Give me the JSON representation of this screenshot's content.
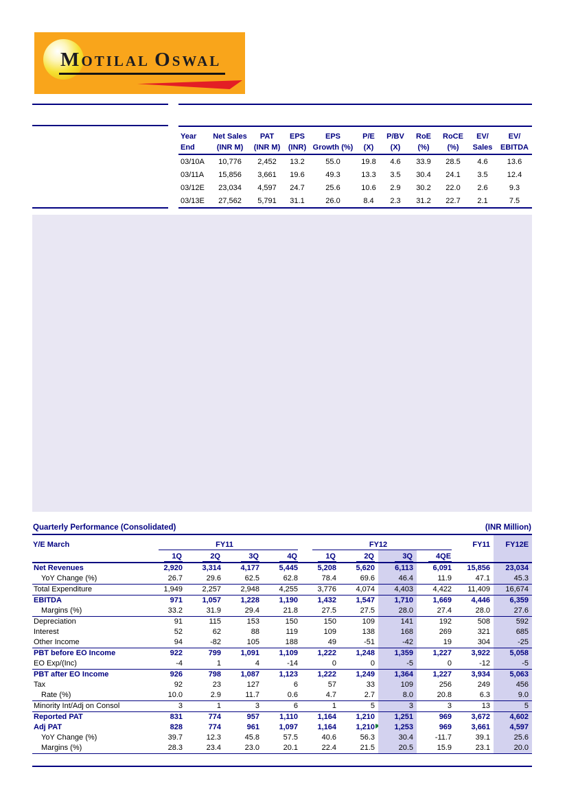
{
  "page": {
    "colors": {
      "accent_navy": "#000080",
      "logo_orange": "#F9A51B",
      "logo_red": "#E31E25",
      "panel_lavender": "#E9E7F3",
      "highlight_lavender": "#D3D2EF",
      "comment_green": "#1E7F3C"
    }
  },
  "logo": {
    "word1_initial": "M",
    "word1_rest": "OTILAL ",
    "word2_initial": "O",
    "word2_rest": "SWAL"
  },
  "summary_table": {
    "columns": [
      {
        "l1": "Year",
        "l2": "End"
      },
      {
        "l1": "Net Sales",
        "l2": "(INR M)"
      },
      {
        "l1": "PAT",
        "l2": "(INR M)"
      },
      {
        "l1": "EPS",
        "l2": "(INR)"
      },
      {
        "l1": "EPS",
        "l2": "Growth (%)"
      },
      {
        "l1": "P/E",
        "l2": "(X)"
      },
      {
        "l1": "P/BV",
        "l2": "(X)"
      },
      {
        "l1": "RoE",
        "l2": "(%)"
      },
      {
        "l1": "RoCE",
        "l2": "(%)"
      },
      {
        "l1": "EV/",
        "l2": "Sales"
      },
      {
        "l1": "EV/",
        "l2": "EBITDA"
      }
    ],
    "rows": [
      [
        "03/10A",
        "10,776",
        "2,452",
        "13.2",
        "55.0",
        "19.8",
        "4.6",
        "33.9",
        "28.5",
        "4.6",
        "13.6"
      ],
      [
        "03/11A",
        "15,856",
        "3,661",
        "19.6",
        "49.3",
        "13.3",
        "3.5",
        "30.4",
        "24.1",
        "3.5",
        "12.4"
      ],
      [
        "03/12E",
        "23,034",
        "4,597",
        "24.7",
        "25.6",
        "10.6",
        "2.9",
        "30.2",
        "22.0",
        "2.6",
        "9.3"
      ],
      [
        "03/13E",
        "27,562",
        "5,791",
        "31.1",
        "26.0",
        "8.4",
        "2.3",
        "31.2",
        "22.7",
        "2.1",
        "7.5"
      ]
    ]
  },
  "quarterly_table": {
    "title": "Quarterly Performance (Consolidated)",
    "unit_label": "(INR Million)",
    "ye_label": "Y/E March",
    "group_fy11": "FY11",
    "group_fy12": "FY12",
    "annual_fy11": "FY11",
    "annual_fy12e": "FY12E",
    "quarters": [
      "1Q",
      "2Q",
      "3Q",
      "4Q",
      "1Q",
      "2Q",
      "3Q",
      "4QE"
    ],
    "rows": [
      {
        "label": "Net Revenues",
        "bold": true,
        "values": [
          "2,920",
          "3,314",
          "4,177",
          "5,445",
          "5,208",
          "5,620",
          "6,113",
          "6,091",
          "15,856",
          "23,034"
        ]
      },
      {
        "label": "YoY Change (%)",
        "indent": true,
        "values": [
          "26.7",
          "29.6",
          "62.5",
          "62.8",
          "78.4",
          "69.6",
          "46.4",
          "11.9",
          "47.1",
          "45.3"
        ]
      },
      {
        "label": "Total Expenditure",
        "top": true,
        "values": [
          "1,949",
          "2,257",
          "2,948",
          "4,255",
          "3,776",
          "4,074",
          "4,403",
          "4,422",
          "11,409",
          "16,674"
        ]
      },
      {
        "label": "EBITDA",
        "bold": true,
        "top": true,
        "values": [
          "971",
          "1,057",
          "1,228",
          "1,190",
          "1,432",
          "1,547",
          "1,710",
          "1,669",
          "4,446",
          "6,359"
        ]
      },
      {
        "label": "Margins (%)",
        "indent": true,
        "values": [
          "33.2",
          "31.9",
          "29.4",
          "21.8",
          "27.5",
          "27.5",
          "28.0",
          "27.4",
          "28.0",
          "27.6"
        ]
      },
      {
        "label": "Depreciation",
        "top": true,
        "values": [
          "91",
          "115",
          "153",
          "150",
          "150",
          "109",
          "141",
          "192",
          "508",
          "592"
        ]
      },
      {
        "label": "Interest",
        "values": [
          "52",
          "62",
          "88",
          "119",
          "109",
          "138",
          "168",
          "269",
          "321",
          "685"
        ]
      },
      {
        "label": "Other Income",
        "values": [
          "94",
          "-82",
          "105",
          "188",
          "49",
          "-51",
          "-42",
          "19",
          "304",
          "-25"
        ]
      },
      {
        "label": "PBT before EO Income",
        "bold": true,
        "top": true,
        "values": [
          "922",
          "799",
          "1,091",
          "1,109",
          "1,222",
          "1,248",
          "1,359",
          "1,227",
          "3,922",
          "5,058"
        ]
      },
      {
        "label": "EO Exp/(Inc)",
        "values": [
          "-4",
          "1",
          "4",
          "-14",
          "0",
          "0",
          "-5",
          "0",
          "-12",
          "-5"
        ]
      },
      {
        "label": "PBT after EO Income",
        "bold": true,
        "top": true,
        "values": [
          "926",
          "798",
          "1,087",
          "1,123",
          "1,222",
          "1,249",
          "1,364",
          "1,227",
          "3,934",
          "5,063"
        ]
      },
      {
        "label": "Tax",
        "values": [
          "92",
          "23",
          "127",
          "6",
          "57",
          "33",
          "109",
          "256",
          "249",
          "456"
        ]
      },
      {
        "label": "Rate (%)",
        "indent": true,
        "values": [
          "10.0",
          "2.9",
          "11.7",
          "0.6",
          "4.7",
          "2.7",
          "8.0",
          "20.8",
          "6.3",
          "9.0"
        ]
      },
      {
        "label": "Minority Int/Adj on Consol",
        "top": true,
        "values": [
          "3",
          "1",
          "3",
          "6",
          "1",
          "5",
          "3",
          "3",
          "13",
          "5"
        ]
      },
      {
        "label": "Reported PAT",
        "bold": true,
        "top": true,
        "values": [
          "831",
          "774",
          "957",
          "1,110",
          "1,164",
          "1,210",
          "1,251",
          "969",
          "3,672",
          "4,602"
        ]
      },
      {
        "label": "Adj PAT",
        "bold": true,
        "marker_col": 5,
        "values": [
          "828",
          "774",
          "961",
          "1,097",
          "1,164",
          "1,210",
          "1,253",
          "969",
          "3,661",
          "4,597"
        ]
      },
      {
        "label": "YoY Change (%)",
        "indent": true,
        "values": [
          "39.7",
          "12.3",
          "45.8",
          "57.5",
          "40.6",
          "56.3",
          "30.4",
          "-11.7",
          "39.1",
          "25.6"
        ]
      },
      {
        "label": "Margins (%)",
        "indent": true,
        "values": [
          "28.3",
          "23.4",
          "23.0",
          "20.1",
          "22.4",
          "21.5",
          "20.5",
          "15.9",
          "23.1",
          "20.0"
        ]
      }
    ]
  }
}
